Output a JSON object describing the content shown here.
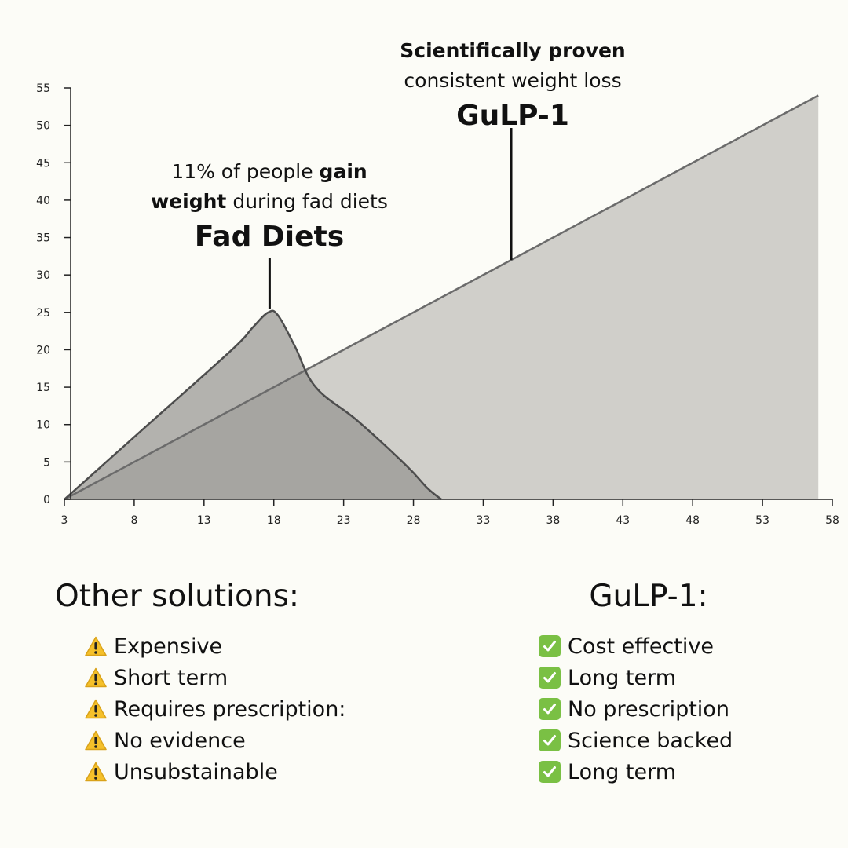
{
  "chart_data": {
    "type": "area",
    "x_ticks": [
      3,
      8,
      13,
      18,
      23,
      28,
      33,
      38,
      43,
      48,
      53,
      58
    ],
    "y_ticks": [
      0,
      5,
      10,
      15,
      20,
      25,
      30,
      35,
      40,
      45,
      50,
      55
    ],
    "xlim": [
      3,
      58
    ],
    "ylim": [
      0,
      55
    ],
    "grid": false,
    "series": [
      {
        "name": "GuLP-1",
        "x": [
          3,
          57
        ],
        "y": [
          0,
          54
        ],
        "fill": "#d0cfca",
        "line": "#6b6b6b"
      },
      {
        "name": "Fad Diets",
        "x": [
          3,
          9,
          15,
          16.5,
          17.6,
          18.3,
          19.5,
          21,
          24,
          27.5,
          29,
          30
        ],
        "y": [
          0,
          10,
          20,
          23,
          25,
          24.6,
          20.5,
          15,
          10.5,
          4.5,
          1.5,
          0
        ],
        "fill": "#b3b2ae",
        "overlap_fill": "#a6a5a1",
        "line": "#4d4d4d"
      }
    ],
    "annotations": [
      {
        "id": "gulp",
        "line1_bold": "Scientifically proven",
        "line2": "consistent weight loss",
        "label": "GuLP-1",
        "pointer_x": 35
      },
      {
        "id": "fad",
        "line1_pre": "11% of people ",
        "line1_bold": "gain",
        "line2_bold": "weight",
        "line2_post": " during fad diets",
        "label": "Fad Diets",
        "pointer_x": 17.7
      }
    ]
  },
  "other": {
    "title": "Other solutions:",
    "icon": "warning-icon",
    "items": [
      "Expensive",
      "Short term",
      "Requires prescription:",
      "No evidence",
      "Unsubstainable"
    ]
  },
  "gulp": {
    "title": "GuLP-1:",
    "icon": "check-icon",
    "items": [
      "Cost effective",
      "Long term",
      "No prescription",
      "Science backed",
      "Long term"
    ]
  },
  "colors": {
    "background": "#fcfcf7",
    "warning": "#f5c02a",
    "check": "#7ac044"
  }
}
